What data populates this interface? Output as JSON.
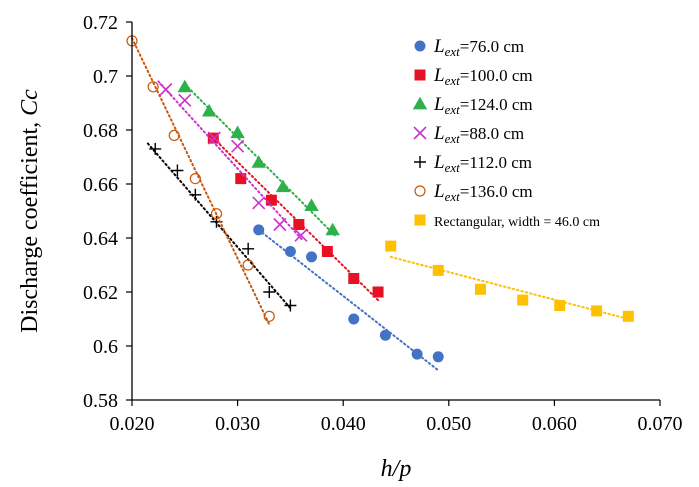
{
  "chart_data": {
    "type": "scatter",
    "xlabel": "h/p",
    "ylabel": "Discharge coefficient, Cc",
    "xlim": [
      0.02,
      0.07
    ],
    "ylim": [
      0.58,
      0.72
    ],
    "x_ticks": [
      "0.020",
      "0.030",
      "0.040",
      "0.050",
      "0.060",
      "0.070"
    ],
    "y_ticks": [
      "0.58",
      "0.6",
      "0.62",
      "0.64",
      "0.66",
      "0.68",
      "0.7",
      "0.72"
    ],
    "grid": false,
    "legend_position": "top-right",
    "series": [
      {
        "name": "76.0 cm",
        "label_prefix": "L",
        "label_sub": "ext",
        "label_eq": "=",
        "marker": "circle",
        "color": "#4472C4",
        "points": [
          [
            0.032,
            0.643
          ],
          [
            0.035,
            0.635
          ],
          [
            0.037,
            0.633
          ],
          [
            0.041,
            0.61
          ],
          [
            0.044,
            0.604
          ],
          [
            0.047,
            0.597
          ],
          [
            0.049,
            0.596
          ]
        ],
        "trend": [
          [
            0.032,
            0.643
          ],
          [
            0.049,
            0.591
          ]
        ]
      },
      {
        "name": "100.0 cm",
        "label_prefix": "L",
        "label_sub": "ext",
        "label_eq": "=",
        "marker": "square",
        "color": "#E81123",
        "points": [
          [
            0.0277,
            0.677
          ],
          [
            0.0303,
            0.662
          ],
          [
            0.0332,
            0.654
          ],
          [
            0.0358,
            0.645
          ],
          [
            0.0385,
            0.635
          ],
          [
            0.041,
            0.625
          ],
          [
            0.0433,
            0.62
          ]
        ],
        "trend": [
          [
            0.0277,
            0.677
          ],
          [
            0.0433,
            0.617
          ]
        ]
      },
      {
        "name": "124.0 cm",
        "label_prefix": "L",
        "label_sub": "ext",
        "label_eq": "=",
        "marker": "triangle",
        "color": "#2DB24A",
        "points": [
          [
            0.025,
            0.696
          ],
          [
            0.0273,
            0.687
          ],
          [
            0.03,
            0.679
          ],
          [
            0.032,
            0.668
          ],
          [
            0.0343,
            0.659
          ],
          [
            0.037,
            0.652
          ],
          [
            0.039,
            0.643
          ]
        ],
        "trend": [
          [
            0.025,
            0.697
          ],
          [
            0.0392,
            0.641
          ]
        ]
      },
      {
        "name": "88.0 cm",
        "label_prefix": "L",
        "label_sub": "ext",
        "label_eq": "=",
        "marker": "x",
        "color": "#CC33CC",
        "points": [
          [
            0.0232,
            0.695
          ],
          [
            0.025,
            0.691
          ],
          [
            0.0278,
            0.677
          ],
          [
            0.03,
            0.674
          ],
          [
            0.032,
            0.653
          ],
          [
            0.034,
            0.645
          ],
          [
            0.036,
            0.641
          ]
        ],
        "trend": [
          [
            0.0225,
            0.698
          ],
          [
            0.0362,
            0.639
          ]
        ]
      },
      {
        "name": "112.0 cm",
        "label_prefix": "L",
        "label_sub": "ext",
        "label_eq": "=",
        "marker": "plus",
        "color": "#000000",
        "points": [
          [
            0.0222,
            0.673
          ],
          [
            0.0243,
            0.665
          ],
          [
            0.026,
            0.656
          ],
          [
            0.028,
            0.646
          ],
          [
            0.031,
            0.636
          ],
          [
            0.033,
            0.62
          ],
          [
            0.035,
            0.615
          ]
        ],
        "trend": [
          [
            0.0215,
            0.675
          ],
          [
            0.035,
            0.614
          ]
        ]
      },
      {
        "name": "136.0 cm",
        "label_prefix": "L",
        "label_sub": "ext",
        "label_eq": "=",
        "marker": "open-circle",
        "color": "#C55A11",
        "points": [
          [
            0.02,
            0.713
          ],
          [
            0.022,
            0.696
          ],
          [
            0.024,
            0.678
          ],
          [
            0.026,
            0.662
          ],
          [
            0.028,
            0.649
          ],
          [
            0.031,
            0.63
          ],
          [
            0.033,
            0.611
          ]
        ],
        "trend": [
          [
            0.02,
            0.714
          ],
          [
            0.033,
            0.608
          ]
        ]
      },
      {
        "name": "Rectangular, width = 46.0 cm",
        "label_prefix": "",
        "label_sub": "",
        "label_eq": "",
        "marker": "square",
        "color": "#FFC000",
        "points": [
          [
            0.0445,
            0.637
          ],
          [
            0.049,
            0.628
          ],
          [
            0.053,
            0.621
          ],
          [
            0.057,
            0.617
          ],
          [
            0.0605,
            0.615
          ],
          [
            0.064,
            0.613
          ],
          [
            0.067,
            0.611
          ]
        ],
        "trend": [
          [
            0.0445,
            0.633
          ],
          [
            0.067,
            0.61
          ]
        ]
      }
    ]
  }
}
